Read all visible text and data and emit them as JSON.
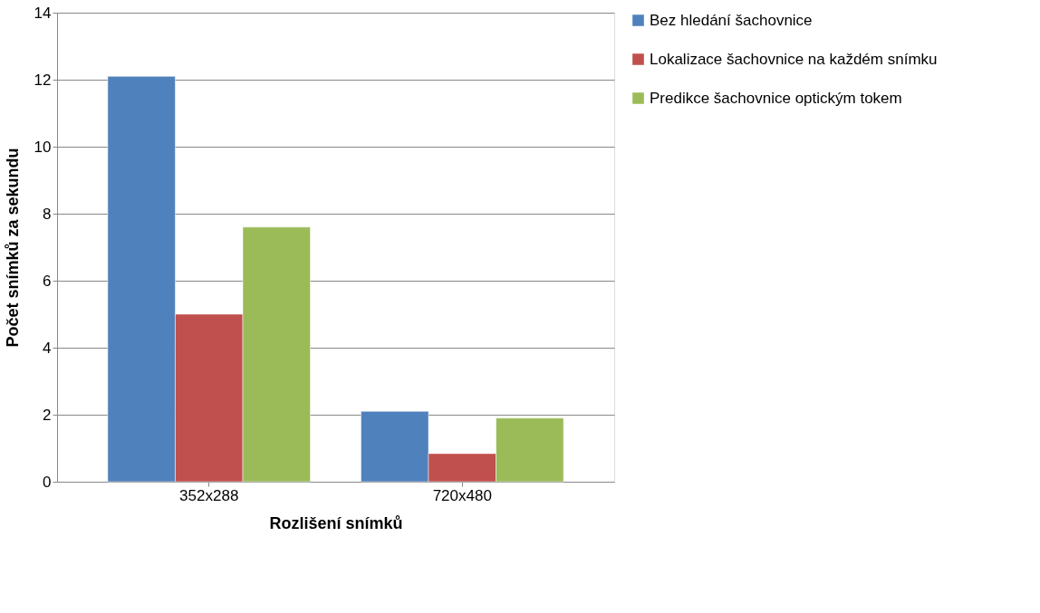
{
  "chart_data": {
    "type": "bar",
    "xlabel": "Rozlišení snímků",
    "ylabel": "Počet snímků za sekundu",
    "categories": [
      "352x288",
      "720x480"
    ],
    "series": [
      {
        "name": "Bez hledání šachovnice",
        "color": "#4f81bd",
        "values": [
          12.1,
          2.1
        ]
      },
      {
        "name": "Lokalizace šachovnice na každém snímku",
        "color": "#c0504d",
        "values": [
          5.0,
          0.84
        ]
      },
      {
        "name": "Predikce šachovnice optickým tokem",
        "color": "#9bbb59",
        "values": [
          7.6,
          1.9
        ]
      }
    ],
    "ylim": [
      0,
      14
    ],
    "yticks": [
      0,
      2,
      4,
      6,
      8,
      10,
      12,
      14
    ],
    "grid": "y",
    "legend": "right"
  }
}
